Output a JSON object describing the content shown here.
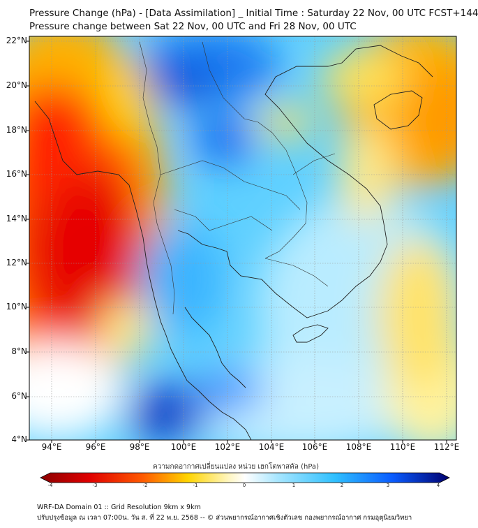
{
  "header": {
    "title_line1": "Pressure Change (hPa) - [Data Assimilation] _ Initial Time : Saturday 22 Nov, 00 UTC FCST+144",
    "title_line2": "Pressure change between Sat 22 Nov, 00 UTC and Fri 28 Nov, 00 UTC"
  },
  "map": {
    "lat_labels": [
      "22°N",
      "20°N",
      "18°N",
      "16°N",
      "14°N",
      "12°N",
      "10°N",
      "8°N",
      "6°N",
      "4°N"
    ],
    "lon_labels": [
      "94°E",
      "96°E",
      "98°E",
      "100°E",
      "102°E",
      "104°E",
      "106°E",
      "108°E",
      "110°E",
      "112°E"
    ],
    "colors": {
      "strong_fall": "#8b0000",
      "fall": "#ff2a00",
      "slight_fall": "#ffd400",
      "neutral": "#ffffff",
      "slight_rise": "#7fd8ff",
      "rise": "#00b4ff",
      "strong_rise": "#00006e"
    }
  },
  "colorbar": {
    "title": "ความกดอากาศเปลี่ยนแปลง หน่วย เฮกโตพาสคัล (hPa)",
    "ticks": [
      "-4",
      "-3",
      "-2",
      "-1",
      "0",
      "1",
      "2",
      "3",
      "4"
    ]
  },
  "footer": {
    "line1": "WRF-DA Domain 01 :: Grid Resolution 9km x 9km",
    "line2": "ปรับปรุงข้อมูล ณ เวลา 07:00น. วัน ส. ที่ 22 พ.ย. 2568 -- © ส่วนพยากรณ์อากาศเชิงตัวเลข กองพยากรณ์อากาศ กรมอุตุนิยมวิทยา"
  }
}
